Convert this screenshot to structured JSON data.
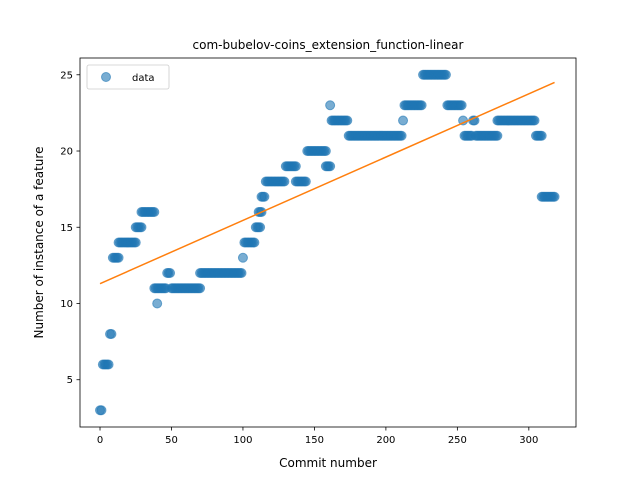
{
  "chart_data": {
    "type": "scatter",
    "title": "com-bubelov-coins_extension_function-linear",
    "xlabel": "Commit number",
    "ylabel": "Number of instance of a feature",
    "xlim": [
      -14,
      333
    ],
    "ylim": [
      1.9,
      26.1
    ],
    "xticks": [
      0,
      50,
      100,
      150,
      200,
      250,
      300
    ],
    "yticks": [
      5,
      10,
      15,
      20,
      25
    ],
    "grid": false,
    "legend_position": "top-left",
    "colors": {
      "scatter": "#1f77b4",
      "fit": "#ff7f0e"
    },
    "series": [
      {
        "name": "data",
        "segments": [
          {
            "x_start": 0,
            "x_end": 1,
            "y": 3
          },
          {
            "x_start": 2,
            "x_end": 6,
            "y": 6
          },
          {
            "x_start": 7,
            "x_end": 8,
            "y": 8
          },
          {
            "x_start": 9,
            "x_end": 13,
            "y": 13
          },
          {
            "x_start": 13,
            "x_end": 25,
            "y": 14
          },
          {
            "x_start": 25,
            "x_end": 29,
            "y": 15
          },
          {
            "x_start": 29,
            "x_end": 38,
            "y": 16
          },
          {
            "x_start": 38,
            "x_end": 46,
            "y": 11
          },
          {
            "x_start": 40,
            "x_end": 40,
            "y": 10
          },
          {
            "x_start": 47,
            "x_end": 49,
            "y": 12
          },
          {
            "x_start": 50,
            "x_end": 70,
            "y": 11
          },
          {
            "x_start": 70,
            "x_end": 99,
            "y": 12
          },
          {
            "x_start": 100,
            "x_end": 100,
            "y": 13
          },
          {
            "x_start": 101,
            "x_end": 108,
            "y": 14
          },
          {
            "x_start": 109,
            "x_end": 112,
            "y": 15
          },
          {
            "x_start": 111,
            "x_end": 113,
            "y": 16
          },
          {
            "x_start": 113,
            "x_end": 115,
            "y": 17
          },
          {
            "x_start": 116,
            "x_end": 129,
            "y": 18
          },
          {
            "x_start": 130,
            "x_end": 137,
            "y": 19
          },
          {
            "x_start": 137,
            "x_end": 144,
            "y": 18
          },
          {
            "x_start": 145,
            "x_end": 158,
            "y": 20
          },
          {
            "x_start": 158,
            "x_end": 161,
            "y": 19
          },
          {
            "x_start": 161,
            "x_end": 161,
            "y": 23
          },
          {
            "x_start": 162,
            "x_end": 173,
            "y": 22
          },
          {
            "x_start": 174,
            "x_end": 211,
            "y": 21
          },
          {
            "x_start": 212,
            "x_end": 212,
            "y": 22
          },
          {
            "x_start": 213,
            "x_end": 225,
            "y": 23
          },
          {
            "x_start": 226,
            "x_end": 242,
            "y": 25
          },
          {
            "x_start": 243,
            "x_end": 253,
            "y": 23
          },
          {
            "x_start": 254,
            "x_end": 254,
            "y": 22
          },
          {
            "x_start": 255,
            "x_end": 260,
            "y": 21
          },
          {
            "x_start": 261,
            "x_end": 262,
            "y": 22
          },
          {
            "x_start": 263,
            "x_end": 278,
            "y": 21
          },
          {
            "x_start": 278,
            "x_end": 304,
            "y": 22
          },
          {
            "x_start": 305,
            "x_end": 309,
            "y": 21
          },
          {
            "x_start": 309,
            "x_end": 318,
            "y": 17
          }
        ]
      },
      {
        "name": "",
        "type": "line",
        "x": [
          0,
          318
        ],
        "y": [
          11.3,
          24.5
        ]
      }
    ]
  }
}
